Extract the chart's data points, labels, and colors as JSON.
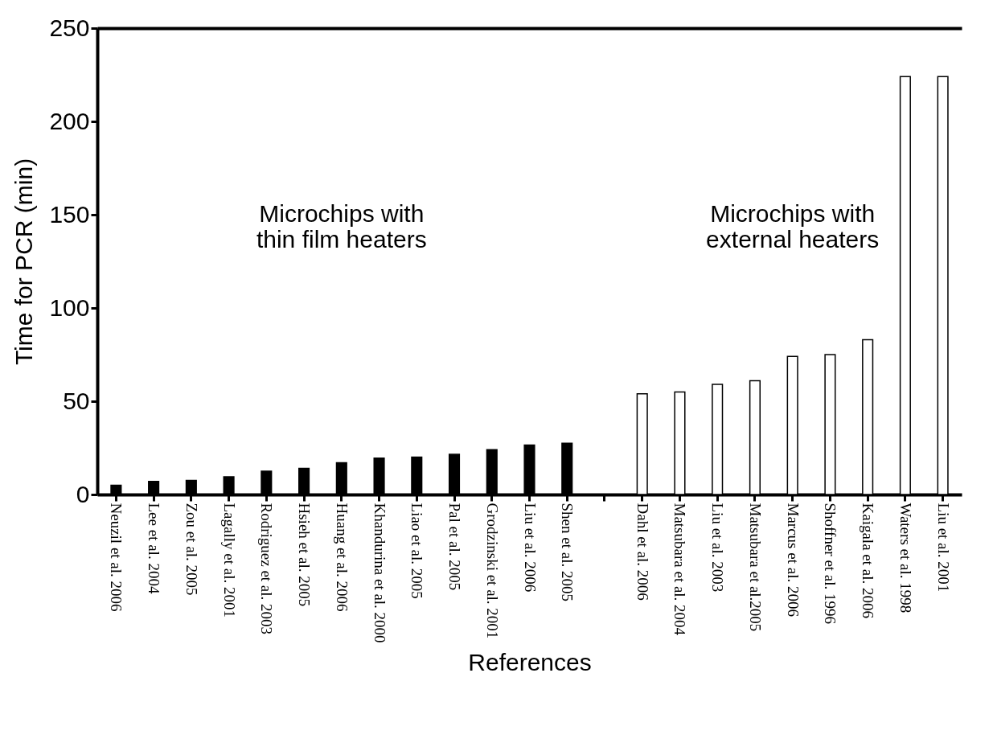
{
  "chart_data": {
    "type": "bar",
    "ylabel": "Time for PCR (min)",
    "xlabel": "References",
    "categories": [
      "Neuzil et al. 2006",
      "Lee et al. 2004",
      "Zou et al. 2005",
      "Lagally et al. 2001",
      "Rodriguez et al. 2003",
      "Hsieh et al. 2005",
      "Huang et al. 2006",
      "Khandurina et al. 2000",
      "Liao et al. 2005",
      "Pal et al. 2005",
      "Grodzinski et al. 2001",
      "Liu et al. 2006",
      "Shen et al. 2005",
      null,
      "Dahl et al. 2006",
      "Matsubara et al. 2004",
      "Liu et al. 2003",
      "Matsubara et al.2005",
      "Marcus et al. 2006",
      "Shoffner et al. 1996",
      "Kaigala et al. 2006",
      "Waters et al. 1998",
      "Liu et al. 2001"
    ],
    "series": [
      {
        "color": "#000000",
        "values": [
          5,
          7,
          7.5,
          9.5,
          12.5,
          14,
          17,
          19.5,
          20,
          21.5,
          24,
          26.5,
          27.5,
          null,
          null,
          null,
          null,
          null,
          null,
          null,
          null,
          null,
          null
        ]
      },
      {
        "color": "#ffffff",
        "values": [
          null,
          null,
          null,
          null,
          null,
          null,
          null,
          null,
          null,
          null,
          null,
          null,
          null,
          null,
          54,
          55,
          59,
          61,
          74,
          75,
          83,
          224,
          224
        ]
      }
    ],
    "annotations": [
      "Microchips with\nthin film heaters",
      "Microchips with\nexternal heaters"
    ],
    "ylim": [
      0,
      250
    ],
    "yticks": [
      0,
      50,
      100,
      150,
      200,
      250
    ],
    "grid": false
  }
}
